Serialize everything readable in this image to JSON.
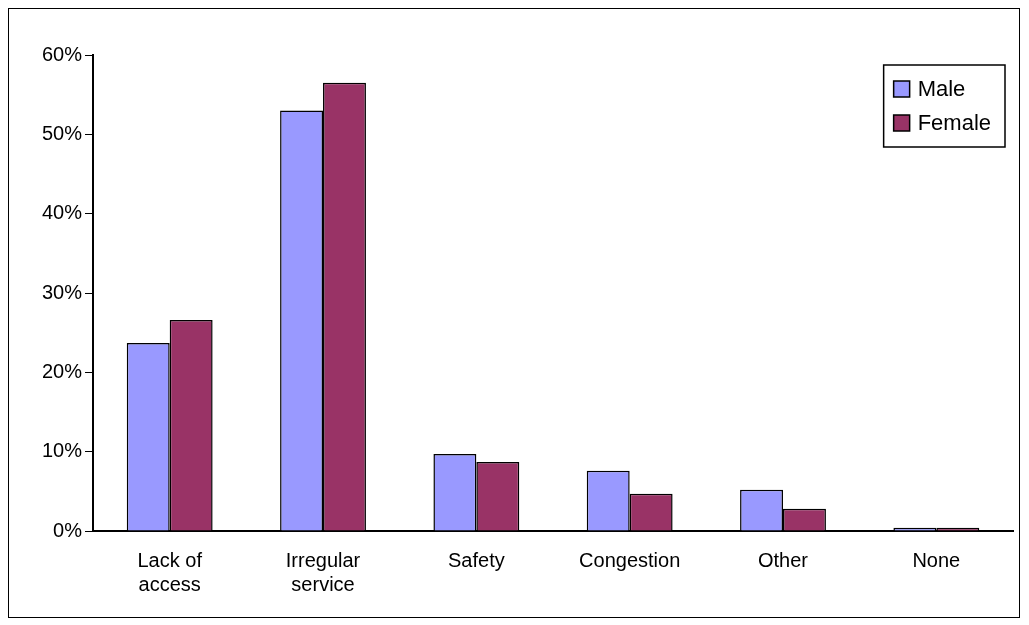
{
  "chart_data": {
    "type": "bar",
    "categories": [
      "Lack of access",
      "Irregular service",
      "Safety",
      "Congestion",
      "Other",
      "None"
    ],
    "series": [
      {
        "name": "Male",
        "color": "#9999ff",
        "values": [
          23.7,
          53.0,
          9.7,
          7.6,
          5.2,
          0.4
        ]
      },
      {
        "name": "Female",
        "color": "#993366",
        "values": [
          26.6,
          56.5,
          8.7,
          4.7,
          2.8,
          0.4
        ]
      }
    ],
    "ylim": [
      0,
      60
    ],
    "yticks": [
      {
        "value": 0,
        "label": "0%"
      },
      {
        "value": 10,
        "label": "10%"
      },
      {
        "value": 20,
        "label": "20%"
      },
      {
        "value": 30,
        "label": "30%"
      },
      {
        "value": 40,
        "label": "40%"
      },
      {
        "value": 50,
        "label": "50%"
      },
      {
        "value": 60,
        "label": "60%"
      }
    ],
    "grid": false,
    "legend": "top right"
  }
}
